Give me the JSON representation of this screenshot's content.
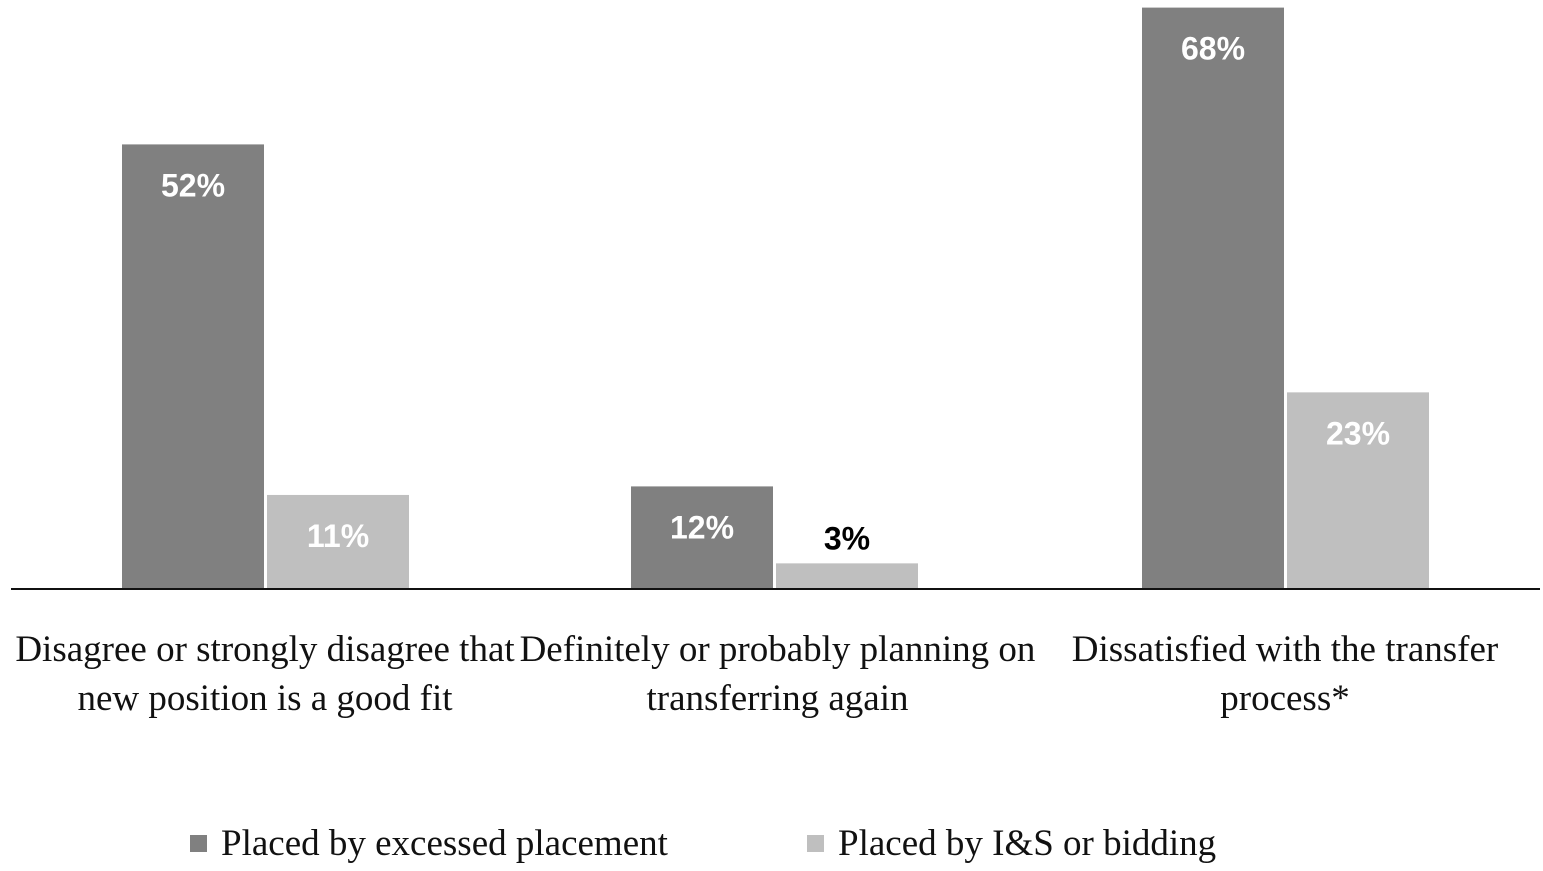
{
  "chart_data": {
    "type": "bar",
    "categories": [
      "Disagree or strongly disagree that new position is a good fit",
      "Definitely or probably planning on transferring again",
      "Dissatisfied with the transfer process*"
    ],
    "series": [
      {
        "name": "Placed by excessed placement",
        "values": [
          52,
          12,
          68
        ],
        "labels": [
          "52%",
          "12%",
          "68%"
        ],
        "color": "#808080",
        "label_color": "#ffffff"
      },
      {
        "name": "Placed by I&S or bidding",
        "values": [
          11,
          3,
          23
        ],
        "labels": [
          "11%",
          "3%",
          "23%"
        ],
        "color": "#bfbfbf",
        "label_color": "#ffffff"
      }
    ],
    "ylim": [
      0,
      70
    ],
    "grid": false,
    "legend_position": "bottom"
  }
}
